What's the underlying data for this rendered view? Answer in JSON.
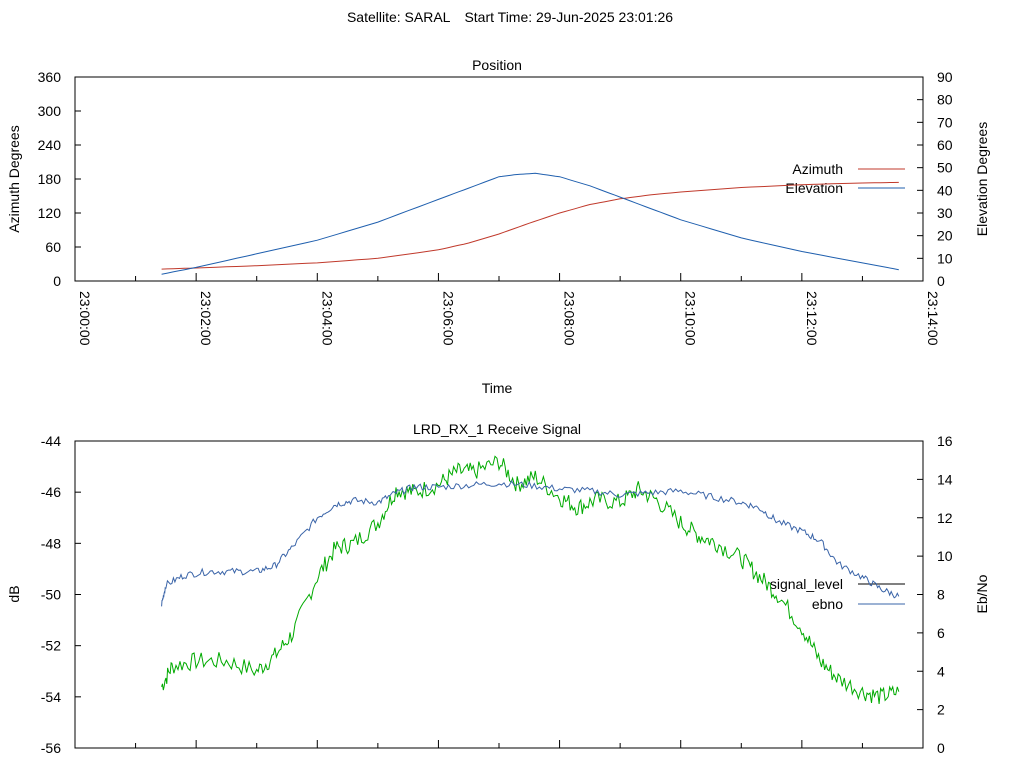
{
  "header": {
    "satellite": "Satellite: SARAL",
    "start_time": "Start Time: 29-Jun-2025 23:01:26"
  },
  "colors": {
    "azimuth": "#c0392b",
    "elevation": "#1f5fae",
    "signal_level": "#00aa00",
    "signal_level_legend": "#000000",
    "ebno": "#3a64a8"
  },
  "chart_data": [
    {
      "type": "line",
      "title": "Position",
      "xlabel": "Time",
      "ylabel": "Azimuth Degrees",
      "y2label": "Elevation Degrees",
      "xticks": [
        "23:00:00",
        "23:02:00",
        "23:04:00",
        "23:06:00",
        "23:08:00",
        "23:10:00",
        "23:12:00",
        "23:14:00"
      ],
      "xlim_minutes": [
        0,
        14
      ],
      "ylim": [
        0,
        360
      ],
      "y2lim": [
        0,
        90
      ],
      "yticks": [
        "0",
        "60",
        "120",
        "180",
        "240",
        "300",
        "360"
      ],
      "y2ticks": [
        "0",
        "10",
        "20",
        "30",
        "40",
        "50",
        "60",
        "70",
        "80",
        "90"
      ],
      "legend_position": "right",
      "series": [
        {
          "name": "Azimuth",
          "axis": "y",
          "x_minutes": [
            1.43,
            2,
            3,
            4,
            5,
            6,
            6.5,
            7,
            7.5,
            8,
            8.5,
            9,
            9.5,
            10,
            11,
            12,
            13,
            13.6
          ],
          "values": [
            21,
            23,
            27,
            32,
            40,
            55,
            67,
            83,
            102,
            120,
            135,
            145,
            152,
            157,
            165,
            170,
            173,
            174
          ]
        },
        {
          "name": "Elevation",
          "axis": "y2",
          "x_minutes": [
            1.43,
            2,
            3,
            4,
            5,
            6,
            6.5,
            7,
            7.3,
            7.6,
            8,
            8.5,
            9,
            9.5,
            10,
            11,
            12,
            13,
            13.6
          ],
          "values": [
            3,
            6,
            12,
            18,
            26,
            36,
            41,
            46,
            47,
            47.5,
            46,
            42,
            37,
            32,
            27,
            19,
            13,
            8,
            5
          ]
        }
      ]
    },
    {
      "type": "line",
      "title": "LRD_RX_1 Receive Signal",
      "ylabel": "dB",
      "y2label": "Eb/No",
      "xlim_minutes": [
        0,
        14
      ],
      "ylim": [
        -56,
        -44
      ],
      "y2lim": [
        0,
        16
      ],
      "yticks": [
        "-44",
        "-46",
        "-48",
        "-50",
        "-52",
        "-54",
        "-56"
      ],
      "y2ticks": [
        "0",
        "2",
        "4",
        "6",
        "8",
        "10",
        "12",
        "14",
        "16"
      ],
      "legend_position": "right",
      "series": [
        {
          "name": "signal_level",
          "axis": "y",
          "x_minutes": [
            1.43,
            1.6,
            2,
            2.5,
            3,
            3.3,
            3.6,
            4,
            4.3,
            4.6,
            5,
            5.3,
            5.6,
            6,
            6.3,
            6.6,
            7,
            7.3,
            7.6,
            8,
            8.3,
            8.6,
            9,
            9.3,
            9.6,
            10,
            10.3,
            10.6,
            11,
            11.3,
            11.6,
            12,
            12.3,
            12.6,
            13,
            13.3,
            13.6
          ],
          "values": [
            -53.6,
            -52.8,
            -52.6,
            -52.6,
            -53.0,
            -52.4,
            -51.5,
            -49.3,
            -48.2,
            -48.0,
            -47.2,
            -45.9,
            -46.0,
            -45.7,
            -45.2,
            -45.2,
            -44.8,
            -45.7,
            -45.4,
            -46.2,
            -46.6,
            -46.3,
            -46.4,
            -45.9,
            -46.3,
            -47.2,
            -47.7,
            -48.0,
            -48.6,
            -49.3,
            -50.0,
            -51.3,
            -52.6,
            -53.3,
            -53.8,
            -54.0,
            -53.8
          ]
        },
        {
          "name": "ebno",
          "axis": "y2",
          "x_minutes": [
            1.43,
            1.5,
            1.8,
            2.2,
            2.6,
            3,
            3.3,
            3.6,
            4,
            4.3,
            4.6,
            5,
            5.3,
            5.6,
            6,
            6.5,
            7,
            7.5,
            8,
            8.5,
            9,
            9.5,
            10,
            10.5,
            11,
            11.3,
            11.6,
            12,
            12.3,
            12.6,
            13,
            13.3,
            13.6
          ],
          "values": [
            7.5,
            8.5,
            9.0,
            9.2,
            9.2,
            9.2,
            9.5,
            10.5,
            12.0,
            12.7,
            12.9,
            12.8,
            13.3,
            13.6,
            13.6,
            13.7,
            13.8,
            13.7,
            13.5,
            13.4,
            13.2,
            13.3,
            13.4,
            13.1,
            12.8,
            12.5,
            11.8,
            11.3,
            10.8,
            9.6,
            8.9,
            8.3,
            7.9
          ]
        }
      ]
    }
  ]
}
